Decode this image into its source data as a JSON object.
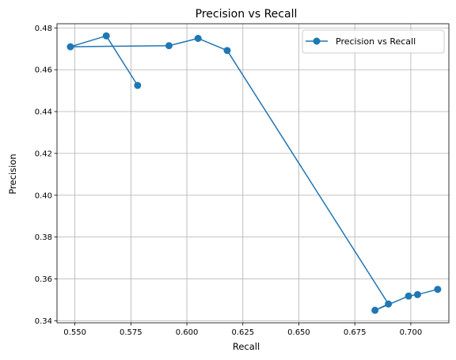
{
  "chart_data": {
    "type": "line",
    "title": "Precision vs Recall",
    "xlabel": "Recall",
    "ylabel": "Precision",
    "xlim": [
      0.542,
      0.717
    ],
    "ylim": [
      0.339,
      0.482
    ],
    "xticks": [
      0.55,
      0.575,
      0.6,
      0.625,
      0.65,
      0.675,
      0.7
    ],
    "xtick_labels": [
      "0.550",
      "0.575",
      "0.600",
      "0.625",
      "0.650",
      "0.675",
      "0.700"
    ],
    "yticks": [
      0.34,
      0.36,
      0.38,
      0.4,
      0.42,
      0.44,
      0.46,
      0.48
    ],
    "ytick_labels": [
      "0.34",
      "0.36",
      "0.38",
      "0.40",
      "0.42",
      "0.44",
      "0.46",
      "0.48"
    ],
    "grid": true,
    "legend_position": "top-right",
    "series": [
      {
        "name": "Precision vs Recall",
        "color": "#1f77b4",
        "marker": "circle",
        "points": [
          [
            0.578,
            0.4525
          ],
          [
            0.564,
            0.4762
          ],
          [
            0.548,
            0.471
          ],
          [
            0.592,
            0.4715
          ],
          [
            0.605,
            0.475
          ],
          [
            0.618,
            0.4692
          ],
          [
            0.69,
            0.348
          ],
          [
            0.684,
            0.345
          ],
          [
            0.699,
            0.3518
          ],
          [
            0.703,
            0.3525
          ],
          [
            0.712,
            0.355
          ]
        ]
      }
    ]
  }
}
